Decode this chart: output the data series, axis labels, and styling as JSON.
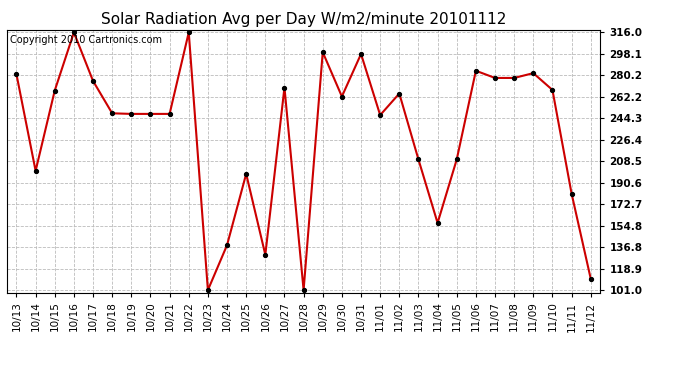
{
  "title": "Solar Radiation Avg per Day W/m2/minute 20101112",
  "copyright_text": "Copyright 2010 Cartronics.com",
  "x_labels": [
    "10/13",
    "10/14",
    "10/15",
    "10/16",
    "10/17",
    "10/18",
    "10/19",
    "10/20",
    "10/21",
    "10/22",
    "10/23",
    "10/24",
    "10/25",
    "10/26",
    "10/27",
    "10/28",
    "10/29",
    "10/30",
    "10/31",
    "11/01",
    "11/02",
    "11/03",
    "11/04",
    "11/05",
    "11/06",
    "11/07",
    "11/08",
    "11/09",
    "11/10",
    "11/11",
    "11/12"
  ],
  "y_values": [
    281.0,
    200.5,
    267.5,
    316.0,
    275.5,
    248.5,
    248.0,
    248.0,
    248.0,
    316.0,
    101.0,
    138.5,
    198.0,
    130.5,
    270.0,
    101.0,
    299.5,
    262.5,
    298.0,
    247.0,
    265.0,
    210.0,
    157.0,
    210.0,
    284.0,
    278.0,
    278.0,
    282.0,
    268.0,
    181.5,
    110.5
  ],
  "y_ticks": [
    101.0,
    118.9,
    136.8,
    154.8,
    172.7,
    190.6,
    208.5,
    226.4,
    244.3,
    262.2,
    280.2,
    298.1,
    316.0
  ],
  "y_min": 101.0,
  "y_max": 316.0,
  "line_color": "#cc0000",
  "marker_color": "#000000",
  "bg_color": "#ffffff",
  "plot_bg_color": "#ffffff",
  "grid_color": "#bbbbbb",
  "title_fontsize": 11,
  "copyright_fontsize": 7,
  "tick_fontsize": 7.5
}
